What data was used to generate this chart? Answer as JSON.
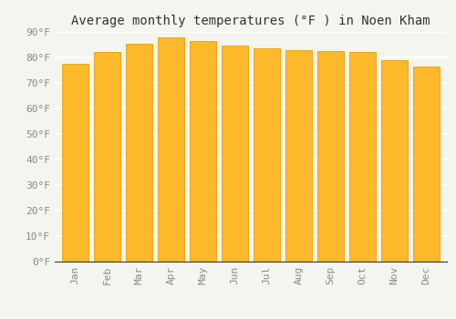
{
  "title": "Average monthly temperatures (°F ) in Noen Kham",
  "months": [
    "Jan",
    "Feb",
    "Mar",
    "Apr",
    "May",
    "Jun",
    "Jul",
    "Aug",
    "Sep",
    "Oct",
    "Nov",
    "Dec"
  ],
  "values": [
    77.5,
    82.0,
    85.5,
    88.0,
    86.5,
    84.5,
    83.5,
    83.0,
    82.5,
    82.0,
    79.0,
    76.5
  ],
  "bar_color_face": "#FDB92C",
  "bar_color_edge": "#E8A000",
  "ylim": [
    0,
    90
  ],
  "yticks": [
    0,
    10,
    20,
    30,
    40,
    50,
    60,
    70,
    80,
    90
  ],
  "ytick_labels": [
    "0°F",
    "10°F",
    "20°F",
    "30°F",
    "40°F",
    "50°F",
    "60°F",
    "70°F",
    "80°F",
    "90°F"
  ],
  "background_color": "#F5F5F0",
  "grid_color": "#FFFFFF",
  "title_fontsize": 10,
  "tick_fontsize": 8,
  "tick_color": "#888888",
  "bar_width": 0.82
}
